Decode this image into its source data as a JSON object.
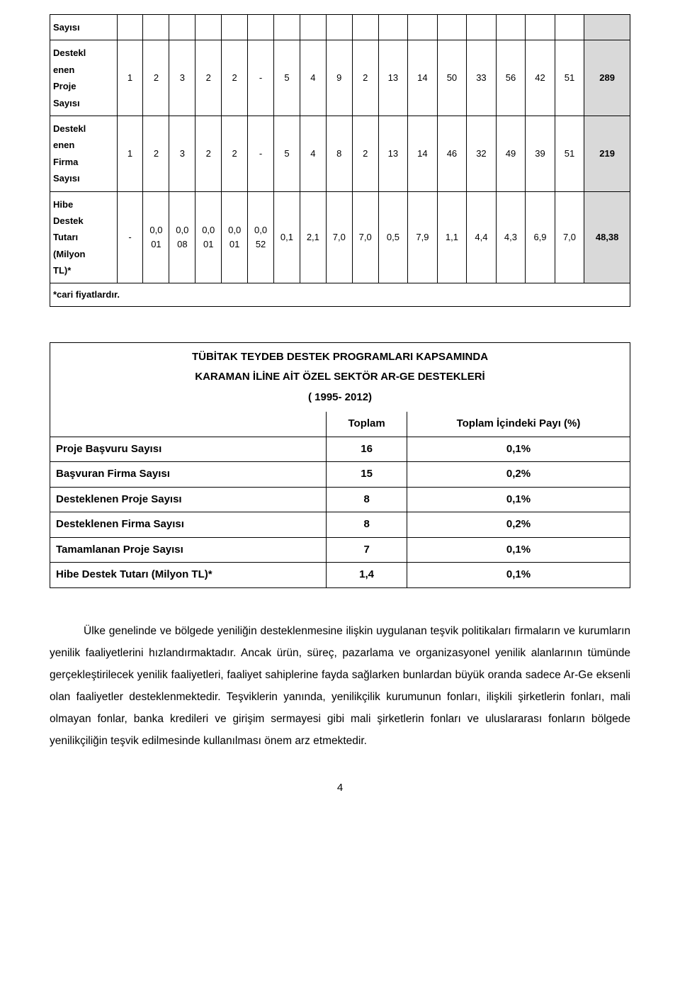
{
  "colors": {
    "background": "#ffffff",
    "text": "#000000",
    "border": "#000000",
    "highlight_bg": "#d9d9d9"
  },
  "table1": {
    "rows": [
      {
        "label_html": "Sayısı",
        "cells": [
          "",
          "",
          "",
          "",
          "",
          "",
          "",
          "",
          "",
          "",
          "",
          "",
          "",
          "",
          "",
          "",
          "",
          ""
        ]
      },
      {
        "label_html": "Destekl<br>enen<br>Proje<br>Sayısı",
        "cells": [
          "1",
          "2",
          "3",
          "2",
          "2",
          "-",
          "5",
          "4",
          "9",
          "2",
          "13",
          "14",
          "50",
          "33",
          "56",
          "42",
          "51",
          "289"
        ]
      },
      {
        "label_html": "Destekl<br>enen<br>Firma<br>Sayısı",
        "cells": [
          "1",
          "2",
          "3",
          "2",
          "2",
          "-",
          "5",
          "4",
          "8",
          "2",
          "13",
          "14",
          "46",
          "32",
          "49",
          "39",
          "51",
          "219"
        ]
      },
      {
        "label_html": "Hibe<br>Destek<br>Tutarı<br>(Milyon<br>TL)*",
        "cells": [
          "-",
          "0,0<br>01",
          "0,0<br>08",
          "0,0<br>01",
          "0,0<br>01",
          "0,0<br>52",
          "0,1",
          "2,1",
          "7,0",
          "7,0",
          "0,5",
          "7,9",
          "1,1",
          "4,4",
          "4,3",
          "6,9",
          "7,0",
          "48,38"
        ]
      }
    ],
    "footnote": "*cari fiyatlardır."
  },
  "table2": {
    "title_lines": [
      "TÜBİTAK TEYDEB DESTEK PROGRAMLARI KAPSAMINDA",
      "KARAMAN İLİNE AİT ÖZEL SEKTÖR AR-GE DESTEKLERİ",
      "( 1995- 2012)"
    ],
    "header": [
      "",
      "Toplam",
      "Toplam İçindeki Payı (%)"
    ],
    "rows": [
      {
        "label": "Proje Başvuru Sayısı",
        "toplam": "16",
        "pay": "0,1%"
      },
      {
        "label": "Başvuran Firma Sayısı",
        "toplam": "15",
        "pay": "0,2%"
      },
      {
        "label": "Desteklenen Proje Sayısı",
        "toplam": "8",
        "pay": "0,1%"
      },
      {
        "label": "Desteklenen Firma Sayısı",
        "toplam": "8",
        "pay": "0,2%"
      },
      {
        "label": "Tamamlanan Proje Sayısı",
        "toplam": "7",
        "pay": "0,1%"
      },
      {
        "label": "Hibe Destek Tutarı (Milyon TL)*",
        "toplam": "1,4",
        "pay": "0,1%"
      }
    ]
  },
  "paragraph": "Ülke genelinde ve bölgede yeniliğin desteklenmesine ilişkin uygulanan teşvik politikaları firmaların ve kurumların yenilik faaliyetlerini hızlandırmaktadır. Ancak ürün, süreç, pazarlama ve organizasyonel yenilik alanlarının tümünde gerçekleştirilecek yenilik faaliyetleri, faaliyet sahiplerine fayda sağlarken bunlardan büyük oranda sadece Ar-Ge eksenli olan faaliyetler desteklenmektedir. Teşviklerin yanında, yenilikçilik kurumunun fonları, ilişkili şirketlerin fonları, mali olmayan fonlar, banka kredileri ve girişim sermayesi gibi mali şirketlerin fonları ve uluslararası fonların bölgede yenilikçiliğin teşvik edilmesinde kullanılması önem arz etmektedir.",
  "page_number": "4"
}
